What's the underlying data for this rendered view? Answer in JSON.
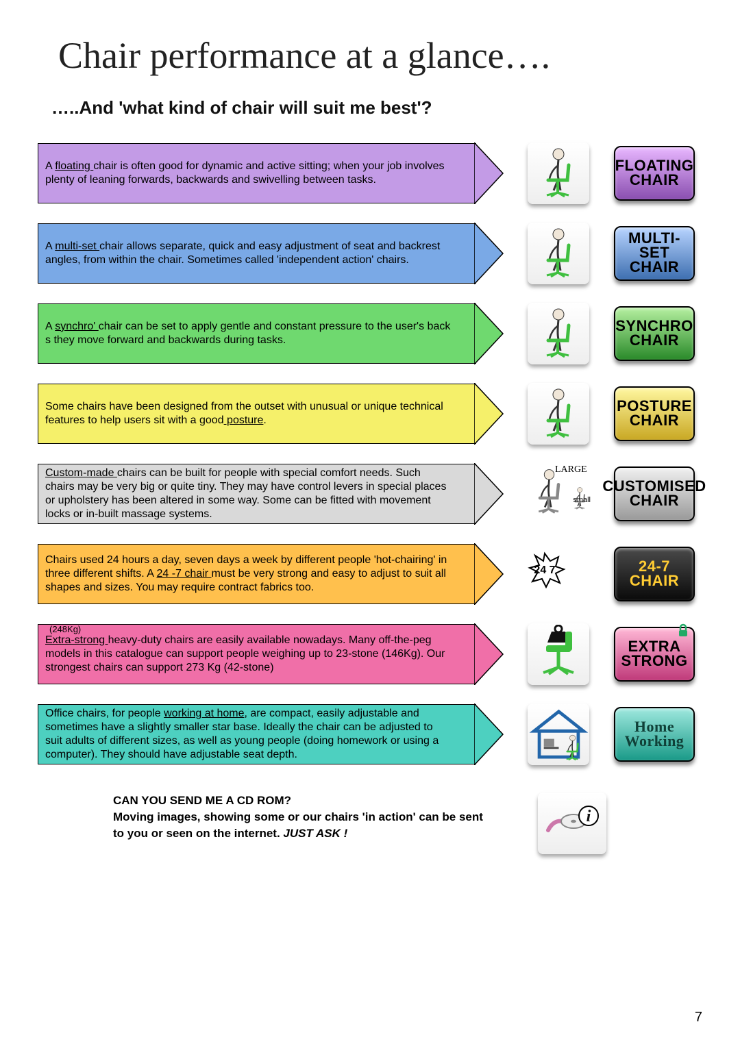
{
  "title": "Chair performance at a glance….",
  "subtitle": "…..And 'what kind of chair will suit me best'?",
  "rows": [
    {
      "bg": "#c39be6",
      "text_pre": "A ",
      "link": "floating ",
      "text_post": "chair is often good for dynamic and active sitting; when your job involves plenty of leaning forwards, backwards and swivelling between tasks.",
      "icon": "person-floating-chair",
      "badge_l1": "FLOATING",
      "badge_l2": "CHAIR",
      "badge_top": "#e8b7ff",
      "badge_bot": "#8a4fb0",
      "badge_color": "#000000"
    },
    {
      "bg": "#7aa9e6",
      "text_pre": "A  ",
      "link": "multi-set ",
      "text_post": "chair allows separate, quick and easy adjustment of seat and backrest angles, from within the chair. Sometimes called 'independent action' chairs.",
      "icon": "person-multiset-chair",
      "badge_l1": "MULTI-SET",
      "badge_l2": "CHAIR",
      "badge_top": "#b8d4ff",
      "badge_bot": "#3e6fb0",
      "badge_color": "#000000"
    },
    {
      "bg": "#6fd96f",
      "text_pre": "A ",
      "link": "synchro' ",
      "text_post": "chair can be set to apply gentle and constant pressure to the user's back s they move forward and backwards during tasks.",
      "icon": "person-synchro-chair",
      "badge_l1": "SYNCHRO",
      "badge_l2": "CHAIR",
      "badge_top": "#b5f0a0",
      "badge_bot": "#2a8a2a",
      "badge_color": "#000000"
    },
    {
      "bg": "#f5f06a",
      "text_pre": "Some chairs have been designed from the outset with unusual or unique technical features to help users sit with a good",
      "link": " posture",
      "text_post": ".",
      "icon": "person-posture-chair",
      "badge_l1": "POSTURE",
      "badge_l2": "CHAIR",
      "badge_top": "#fff7a0",
      "badge_bot": "#c9a824",
      "badge_color": "#000000"
    },
    {
      "bg": "#d9d9d9",
      "text_pre": "",
      "link": "Custom-made ",
      "text_post": "chairs can be built for people with special comfort needs. Such chairs may be very big or quite tiny. They may have control levers in special places or upholstery has been altered in some way. Some can be fitted with movement locks or in-built massage systems.",
      "icon": "large-small-chair",
      "icon_label_a": "LARGE",
      "icon_label_b": "small",
      "badge_l1": "CUSTOMISED",
      "badge_l2": "CHAIR",
      "badge_top": "#f0f0f0",
      "badge_bot": "#9a9a9a",
      "badge_color": "#000000"
    },
    {
      "bg": "#ffc04d",
      "text_pre": "Chairs used 24 hours a day, seven days a week by different people 'hot-chairing' in three different shifts. A  ",
      "link": "24 -7 chair ",
      "text_post": "must be very strong and easy to adjust to suit all  shapes and sizes. You may require contract fabrics too.",
      "icon": "sun-moon-247",
      "icon_text": "24 7",
      "badge_l1": "24-7",
      "badge_l2": "CHAIR",
      "badge_top": "#4a4a4a",
      "badge_bot": "#0a0a0a",
      "badge_color": "#ffcc33"
    },
    {
      "bg": "#f06fa8",
      "note": "(248Kg)",
      "text_pre": "",
      "link": "Extra-strong ",
      "text_post": "heavy-duty chairs  are easily available nowadays. Many off-the-peg models in this catalogue can support people weighing up to 23-stone (146Kg). Our strongest chairs can support  273 Kg (42-stone)",
      "icon": "weight-chair",
      "badge_l1": "EXTRA",
      "badge_l2": "STRONG",
      "badge_top": "#ffb8d6",
      "badge_bot": "#c03a7a",
      "badge_color": "#000000",
      "badge_lock": true
    },
    {
      "bg": "#4dd0c0",
      "text_pre": "Office chairs, for people ",
      "link": "working at home",
      "text_post": ", are compact, easily adjustable and sometimes have a slightly smaller star base. Ideally the chair can be adjusted to suit adults of different sizes, as well as young people (doing homework or using a computer). They should have adjustable seat depth.",
      "icon": "house-desk",
      "badge_l1": "Home",
      "badge_l2": "Working",
      "badge_top": "#9ee8de",
      "badge_bot": "#1a9a88",
      "badge_color": "#104038"
    }
  ],
  "footer": {
    "q": "CAN YOU SEND ME A CD ROM?",
    "body": "Moving images, showing some or our chairs 'in action' can be sent to you or seen on the internet. ",
    "em": "JUST ASK !"
  },
  "page_number": "7"
}
